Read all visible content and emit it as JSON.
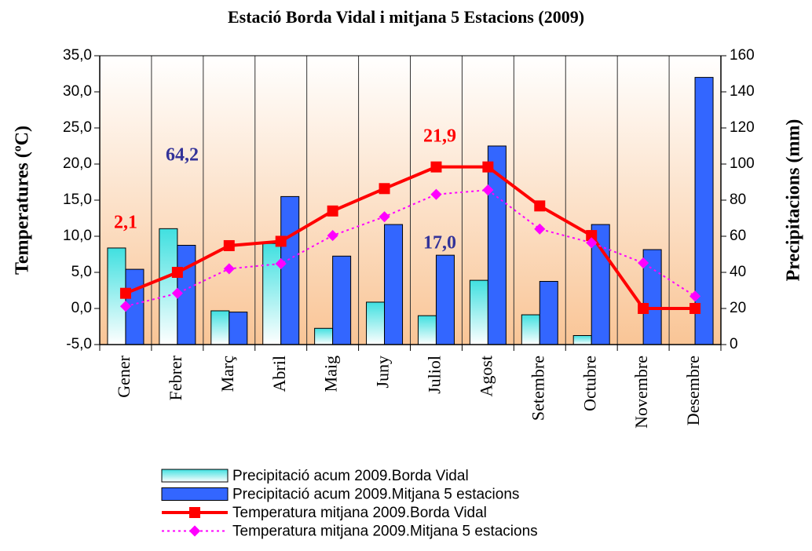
{
  "chart_data": {
    "type": "combo",
    "title": "Estació Borda Vidal i mitjana 5 Estacions (2009)",
    "y_label": "Temperatures (ºC)",
    "y2_label": "Precipitacions (mm)",
    "categories": [
      "Gener",
      "Febrer",
      "Març",
      "Abril",
      "Maig",
      "Juny",
      "Juliol",
      "Agost",
      "Setembre",
      "Octubre",
      "Novembre",
      "Desembre"
    ],
    "ylim": [
      -5,
      35
    ],
    "yticks": [
      {
        "value": -5,
        "label": "-5,0"
      },
      {
        "value": 0,
        "label": "0,0"
      },
      {
        "value": 5,
        "label": "5,0"
      },
      {
        "value": 10,
        "label": "10,0"
      },
      {
        "value": 15,
        "label": "15,0"
      },
      {
        "value": 20,
        "label": "20,0"
      },
      {
        "value": 25,
        "label": "25,0"
      },
      {
        "value": 30,
        "label": "30,0"
      },
      {
        "value": 35,
        "label": "35,0"
      }
    ],
    "y2lim": [
      0,
      160
    ],
    "y2ticks": [
      0,
      20,
      40,
      60,
      80,
      100,
      120,
      140,
      160
    ],
    "grid": true,
    "series": [
      {
        "name": "Precipitació acum 2009.Borda Vidal",
        "type": "bar",
        "axis": "y2",
        "color": "#40e0e0",
        "values": [
          53.5,
          64.2,
          18.7,
          56,
          9,
          23.5,
          16,
          35.6,
          16.5,
          5,
          0,
          0
        ]
      },
      {
        "name": "Precipitació acum 2009.Mitjana 5 estacions",
        "type": "bar",
        "axis": "y2",
        "color": "#3366ff",
        "values": [
          41.7,
          55,
          18,
          82,
          49,
          66.5,
          49.5,
          110,
          35,
          66.5,
          52.6,
          148
        ]
      },
      {
        "name": "Temperatura mitjana 2009.Borda Vidal",
        "type": "line",
        "axis": "y",
        "color": "#ff0000",
        "values": [
          2.1,
          5.0,
          8.7,
          9.3,
          13.5,
          16.6,
          19.6,
          19.6,
          14.2,
          10.1,
          0,
          0
        ]
      },
      {
        "name": "Temperatura mitjana 2009.Mitjana 5 estacions",
        "type": "line",
        "axis": "y",
        "color": "#ff00ff",
        "values": [
          0.3,
          2.1,
          5.5,
          6.2,
          10.1,
          12.7,
          15.8,
          16.4,
          11,
          9.1,
          6.3,
          1.7
        ]
      }
    ],
    "annotations": [
      {
        "text": "2,1",
        "color": "#ff0000"
      },
      {
        "text": "64,2",
        "color": "#333399"
      },
      {
        "text": "21,9",
        "color": "#ff0000"
      },
      {
        "text": "17,0",
        "color": "#333399"
      }
    ]
  }
}
